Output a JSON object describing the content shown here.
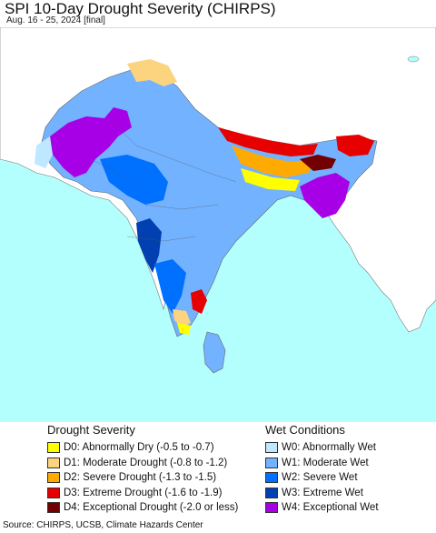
{
  "title": "SPI 10-Day Drought Severity (CHIRPS)",
  "subtitle": "Aug. 16 - 25, 2024 [final]",
  "colors": {
    "ocean": "#b3fffe",
    "land_outside": "#ffffff",
    "border": "#555555"
  },
  "legend": {
    "drought": {
      "heading": "Drought Severity",
      "items": [
        {
          "label": "D0: Abnormally Dry (-0.5 to -0.7)",
          "color": "#ffff00"
        },
        {
          "label": "D1: Moderate Drought (-0.8 to -1.2)",
          "color": "#fcd37f"
        },
        {
          "label": "D2: Severe Drought (-1.3 to -1.5)",
          "color": "#ffaa00"
        },
        {
          "label": "D3: Extreme Drought (-1.6 to -1.9)",
          "color": "#e60000"
        },
        {
          "label": "D4: Exceptional Drought (-2.0 or less)",
          "color": "#730000"
        }
      ]
    },
    "wet": {
      "heading": "Wet Conditions",
      "items": [
        {
          "label": "W0: Abnormally Wet",
          "color": "#bee8ff"
        },
        {
          "label": "W1: Moderate Wet",
          "color": "#73b2ff"
        },
        {
          "label": "W2: Severe Wet",
          "color": "#0070ff"
        },
        {
          "label": "W3: Extreme Wet",
          "color": "#0040b0"
        },
        {
          "label": "W4: Exceptional Wet",
          "color": "#a800e6"
        }
      ]
    }
  },
  "source": "Source: CHIRPS, UCSB, Climate Hazards Center"
}
